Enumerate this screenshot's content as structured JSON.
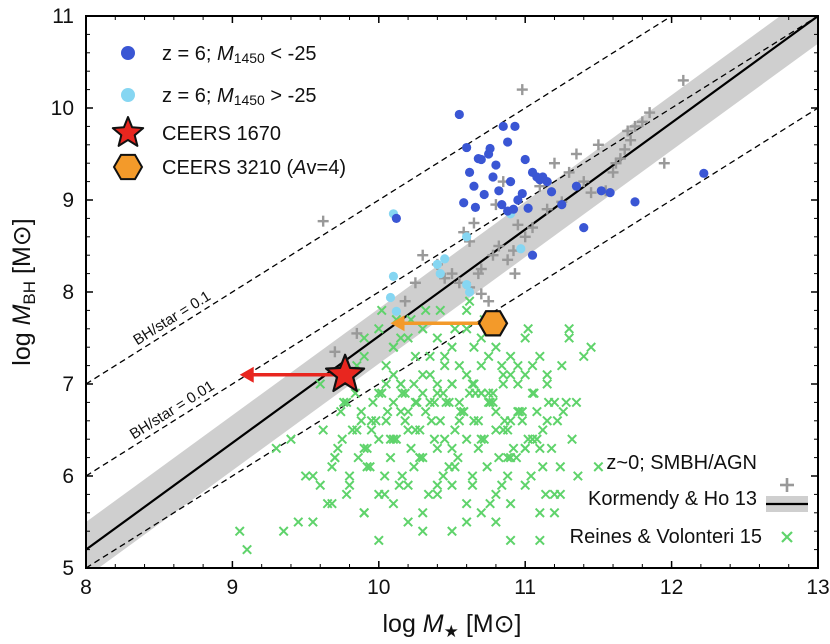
{
  "colors": {
    "z6_bright": "#3a56d4",
    "z6_faint": "#86d6f2",
    "ceers1670": "#e8261f",
    "ceers3210": "#f39a2a",
    "kormendy": "#999999",
    "reines": "#5fd36b",
    "band": "#cfcfcf",
    "relation": "#000000"
  },
  "chart_data": {
    "type": "scatter",
    "xlabel": {
      "prefix": "log",
      "symbol": "M",
      "sub": "★",
      "unit": "[M⊙]"
    },
    "ylabel": {
      "prefix": "log",
      "symbol": "M",
      "sub": "BH",
      "unit": "[M⊙]"
    },
    "xlim": [
      8,
      13
    ],
    "ylim": [
      5,
      11
    ],
    "xticks": [
      "8",
      "9",
      "10",
      "11",
      "12",
      "13"
    ],
    "yticks": [
      "5",
      "6",
      "7",
      "8",
      "9",
      "10",
      "11"
    ],
    "legend_top": [
      {
        "name": "z6_bright",
        "text": "z = 6; M1450 < -25",
        "parts": [
          "z = 6; ",
          "M",
          "1450",
          " < -25"
        ]
      },
      {
        "name": "z6_faint",
        "text": "z = 6; M1450 > -25",
        "parts": [
          "z = 6; ",
          "M",
          "1450",
          " > -25"
        ]
      },
      {
        "name": "ceers1670",
        "text": "CEERS 1670"
      },
      {
        "name": "ceers3210",
        "text": "CEERS 3210 (Av=4)",
        "parts": [
          "CEERS 3210 (",
          "A",
          "v=4)"
        ]
      }
    ],
    "legend_bottom": {
      "title": "z~0; SMBH/AGN",
      "entries": [
        "Kormendy & Ho 13",
        "Reines & Volonteri 15"
      ]
    },
    "reference_lines": [
      {
        "label": "BH/star = 0.1",
        "log_ratio": -1
      },
      {
        "label": "BH/star = 0.01",
        "log_ratio": -2
      },
      {
        "label": "",
        "log_ratio": -3
      }
    ],
    "kormendy_relation": {
      "x": [
        8,
        13
      ],
      "y": [
        5.2,
        11.0
      ],
      "scatter_dex": 0.3
    },
    "arrows": [
      {
        "name": "ceers1670",
        "from": [
          9.77,
          7.1
        ],
        "to": [
          9.05,
          7.1
        ]
      },
      {
        "name": "ceers3210",
        "from": [
          10.78,
          7.66
        ],
        "to": [
          10.08,
          7.66
        ]
      }
    ],
    "series": [
      {
        "name": "CEERS 1670",
        "marker": "star",
        "x": [
          9.77
        ],
        "y": [
          7.1
        ]
      },
      {
        "name": "CEERS 3210",
        "marker": "hexagon",
        "x": [
          10.78
        ],
        "y": [
          7.66
        ]
      },
      {
        "name": "z = 6; M1450 < -25",
        "marker": "circle",
        "x": [
          10.12,
          10.55,
          10.6,
          10.75,
          10.85,
          10.62,
          10.7,
          10.8,
          10.88,
          10.9,
          11.0,
          10.95,
          10.65,
          10.72,
          10.78,
          10.82,
          10.92,
          10.98,
          11.05,
          11.1,
          11.12,
          11.15,
          11.18,
          11.08,
          10.58,
          10.66,
          10.76,
          10.84,
          11.02,
          11.25,
          11.35,
          11.4,
          11.52,
          11.58,
          11.75,
          12.22,
          10.88,
          11.05,
          10.68,
          10.93
        ],
        "y": [
          8.8,
          9.93,
          9.57,
          9.5,
          9.8,
          9.3,
          9.44,
          9.38,
          9.63,
          9.2,
          9.44,
          9.0,
          9.15,
          9.06,
          9.25,
          9.1,
          8.9,
          9.07,
          9.3,
          9.22,
          9.25,
          9.2,
          9.09,
          9.25,
          8.97,
          8.92,
          9.56,
          8.95,
          8.91,
          8.95,
          9.15,
          8.7,
          9.1,
          9.08,
          8.98,
          9.29,
          8.88,
          8.4,
          9.45,
          9.8
        ]
      },
      {
        "name": "z = 6; M1450 > -25",
        "marker": "circle",
        "x": [
          10.1,
          10.1,
          10.08,
          10.12,
          10.4,
          10.42,
          10.45,
          10.6,
          10.62,
          10.9,
          10.97,
          10.6
        ],
        "y": [
          8.85,
          8.17,
          7.94,
          7.79,
          8.3,
          8.2,
          8.36,
          8.08,
          8.0,
          8.85,
          8.47,
          8.6
        ]
      },
      {
        "name": "Kormendy & Ho 13",
        "marker": "plus",
        "x": [
          9.62,
          10.3,
          10.58,
          10.65,
          10.62,
          10.7,
          10.8,
          10.85,
          10.88,
          10.93,
          11.0,
          11.05,
          11.15,
          11.2,
          11.3,
          11.35,
          11.4,
          11.5,
          11.55,
          11.6,
          11.62,
          11.65,
          11.68,
          11.7,
          11.72,
          11.75,
          11.8,
          11.85,
          11.95,
          12.08,
          10.98,
          10.95,
          10.4,
          10.55,
          10.62,
          10.68,
          10.78,
          10.82,
          10.92,
          10.7,
          10.75,
          10.5,
          10.45,
          10.25,
          10.18,
          9.85,
          9.7,
          11.1,
          11.25,
          11.45
        ],
        "y": [
          8.77,
          8.4,
          8.65,
          8.75,
          8.55,
          8.25,
          8.95,
          9.2,
          8.35,
          8.2,
          8.6,
          8.7,
          8.9,
          9.4,
          9.3,
          9.5,
          9.2,
          9.6,
          9.1,
          9.3,
          9.4,
          9.45,
          9.55,
          9.75,
          9.65,
          9.8,
          9.85,
          9.95,
          9.4,
          10.3,
          10.2,
          8.73,
          8.3,
          8.1,
          8.05,
          8.2,
          8.4,
          8.5,
          8.45,
          7.98,
          7.9,
          8.2,
          8.15,
          8.1,
          7.9,
          7.55,
          7.35,
          9.15,
          8.98,
          9.08
        ]
      },
      {
        "name": "Reines & Volonteri 15",
        "marker": "x",
        "x": [
          9.05,
          9.1,
          9.5,
          9.35,
          9.7,
          9.78,
          9.85,
          9.9,
          9.95,
          10.0,
          10.05,
          10.1,
          10.15,
          10.2,
          10.25,
          10.3,
          10.35,
          10.4,
          10.45,
          10.5,
          10.55,
          10.6,
          10.65,
          10.7,
          10.75,
          10.8,
          10.85,
          10.9,
          10.95,
          11.0,
          11.05,
          11.1,
          11.15,
          11.2,
          11.25,
          11.3,
          9.75,
          9.82,
          9.88,
          9.92,
          9.98,
          10.02,
          10.08,
          10.12,
          10.18,
          10.22,
          10.28,
          10.32,
          10.38,
          10.42,
          10.48,
          10.52,
          10.58,
          10.62,
          10.68,
          10.72,
          10.78,
          10.82,
          10.88,
          10.92,
          10.98,
          11.02,
          11.08,
          11.12,
          11.18,
          11.22,
          11.28,
          11.32,
          9.6,
          9.68,
          9.72,
          9.8,
          9.86,
          9.94,
          10.04,
          10.14,
          10.24,
          10.34,
          10.44,
          10.54,
          10.64,
          10.74,
          10.84,
          10.94,
          11.04,
          11.14,
          11.24,
          9.55,
          9.65,
          9.78,
          9.9,
          10.0,
          10.1,
          10.2,
          10.3,
          10.4,
          10.5,
          10.6,
          10.7,
          10.8,
          10.9,
          11.0,
          11.1,
          11.2,
          9.9,
          10.0,
          10.1,
          10.2,
          10.3,
          10.4,
          10.5,
          10.6,
          10.7,
          10.8,
          10.9,
          11.0,
          10.05,
          10.15,
          10.25,
          10.35,
          10.45,
          10.55,
          10.65,
          10.75,
          10.85,
          10.95,
          11.05,
          11.15,
          10.1,
          10.3,
          10.5,
          10.7,
          10.9,
          9.95,
          10.15,
          10.35,
          10.55,
          10.75,
          10.95,
          11.15,
          10.02,
          10.22,
          10.42,
          10.62,
          10.82,
          11.02,
          10.12,
          10.32,
          10.52,
          10.72,
          9.74,
          9.84,
          9.96,
          10.06,
          10.16,
          10.26,
          10.36,
          10.46,
          10.56,
          10.66,
          10.76,
          10.86,
          10.96,
          11.06,
          11.16,
          11.26,
          10.0,
          10.2,
          10.4,
          10.6,
          10.8,
          11.0,
          9.62,
          9.76,
          9.88,
          10.08,
          10.28,
          10.48,
          10.68,
          10.88,
          11.08,
          10.18,
          10.38,
          10.58,
          10.78,
          10.98,
          9.3,
          9.45,
          9.55,
          9.68,
          9.8,
          9.92,
          10.04,
          10.16,
          10.28,
          10.4,
          10.52,
          10.64,
          10.76,
          10.88,
          11.0,
          11.12,
          11.24,
          11.36,
          11.5,
          10.1,
          10.24,
          10.44,
          10.64,
          10.84,
          9.7,
          9.9,
          10.1,
          10.3,
          10.5,
          10.7,
          10.9,
          11.1,
          9.85,
          10.05,
          10.25,
          10.45,
          10.65,
          10.85,
          11.05,
          10.0,
          10.3,
          10.6,
          10.9,
          11.2,
          9.9,
          10.2,
          10.5,
          10.8,
          11.1,
          10.4,
          10.7,
          9.4,
          9.6,
          11.35,
          11.4,
          11.3,
          11.45,
          10.15,
          10.6
        ],
        "y": [
          5.4,
          5.2,
          6.0,
          5.4,
          6.2,
          6.8,
          7.2,
          7.3,
          6.5,
          6.9,
          7.0,
          7.4,
          7.5,
          6.7,
          6.8,
          7.1,
          7.3,
          6.9,
          7.2,
          7.0,
          6.8,
          7.1,
          7.4,
          7.2,
          6.9,
          6.7,
          7.0,
          6.6,
          7.2,
          7.1,
          6.9,
          7.3,
          7.0,
          6.8,
          7.2,
          7.5,
          6.4,
          6.5,
          6.7,
          6.3,
          6.6,
          6.9,
          6.2,
          6.4,
          6.6,
          6.3,
          6.5,
          6.7,
          6.4,
          6.6,
          6.8,
          6.5,
          6.7,
          6.9,
          6.6,
          6.4,
          6.8,
          6.2,
          6.5,
          6.3,
          6.6,
          6.4,
          6.7,
          6.5,
          6.3,
          6.6,
          6.8,
          6.4,
          5.9,
          6.1,
          6.3,
          6.0,
          6.2,
          6.1,
          6.0,
          5.9,
          6.1,
          5.8,
          6.0,
          6.2,
          6.0,
          6.1,
          5.9,
          6.2,
          6.0,
          5.8,
          6.1,
          5.5,
          5.7,
          5.8,
          5.6,
          5.8,
          5.7,
          5.9,
          5.6,
          5.8,
          5.9,
          5.7,
          5.6,
          5.8,
          5.7,
          5.9,
          5.6,
          5.8,
          7.5,
          7.6,
          7.4,
          7.5,
          7.6,
          7.5,
          7.4,
          7.6,
          7.5,
          7.4,
          7.3,
          7.5,
          7.2,
          7.0,
          7.3,
          7.1,
          7.3,
          7.2,
          7.0,
          7.3,
          7.1,
          7.0,
          7.2,
          7.1,
          6.8,
          6.9,
          7.0,
          6.9,
          7.1,
          6.6,
          6.7,
          6.8,
          6.6,
          6.8,
          6.7,
          6.6,
          7.8,
          7.7,
          7.8,
          7.9,
          7.7,
          7.6,
          7.7,
          7.8,
          7.6,
          7.7,
          6.7,
          6.9,
          6.8,
          6.7,
          6.9,
          6.8,
          6.6,
          6.8,
          6.7,
          6.9,
          6.8,
          6.6,
          6.7,
          6.9,
          6.8,
          6.7,
          6.4,
          6.5,
          6.3,
          6.4,
          6.5,
          6.3,
          6.5,
          6.8,
          6.6,
          6.4,
          6.2,
          6.1,
          6.3,
          6.2,
          6.4,
          6.9,
          6.8,
          6.7,
          6.9,
          6.7,
          6.3,
          5.5,
          6.0,
          5.7,
          5.9,
          6.1,
          5.8,
          6.0,
          6.2,
          5.9,
          6.1,
          5.9,
          5.7,
          6.0,
          6.3,
          6.1,
          5.8,
          6.0,
          6.1,
          7.1,
          7.0,
          6.9,
          7.0,
          7.2,
          6.2,
          6.3,
          6.4,
          6.2,
          6.3,
          6.4,
          6.2,
          6.3,
          6.5,
          6.6,
          6.5,
          6.4,
          6.6,
          6.5,
          6.4,
          5.3,
          5.4,
          5.5,
          5.3,
          5.6,
          5.6,
          5.5,
          5.4,
          5.5,
          5.3,
          7.0,
          6.9,
          6.4,
          7.0,
          6.8,
          7.3,
          7.6,
          7.4,
          7.0,
          7.8
        ]
      }
    ]
  }
}
